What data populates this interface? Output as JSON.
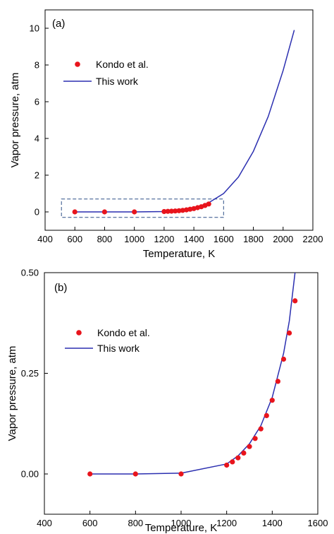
{
  "chart_data": [
    {
      "type": "scatter",
      "panel_label": "(a)",
      "xlabel": "Temperature, K",
      "ylabel": "Vapor pressure, atm",
      "xlim": [
        400,
        2200
      ],
      "ylim": [
        -1,
        11
      ],
      "x_ticks": [
        400,
        600,
        800,
        1000,
        1200,
        1400,
        1600,
        1800,
        2000,
        2200
      ],
      "y_ticks": [
        0,
        2,
        4,
        6,
        8,
        10
      ],
      "legend_position": "upper-left",
      "series": [
        {
          "name": "Kondo et al.",
          "kind": "scatter",
          "color": "#e8141c",
          "x": [
            600,
            800,
            1000,
            1200,
            1225,
            1250,
            1275,
            1300,
            1325,
            1350,
            1375,
            1400,
            1425,
            1450,
            1475,
            1500
          ],
          "y": [
            0,
            0,
            0,
            0.02,
            0.03,
            0.04,
            0.05,
            0.065,
            0.085,
            0.11,
            0.145,
            0.18,
            0.23,
            0.28,
            0.35,
            0.43
          ]
        },
        {
          "name": "This work",
          "kind": "line",
          "color": "#2b2fb0",
          "x": [
            600,
            800,
            1000,
            1200,
            1300,
            1400,
            1500,
            1600,
            1700,
            1800,
            1900,
            2000,
            2075
          ],
          "y": [
            0,
            0,
            0,
            0.02,
            0.07,
            0.2,
            0.5,
            1.0,
            1.9,
            3.3,
            5.2,
            7.7,
            9.9
          ]
        }
      ],
      "annotations": [
        {
          "type": "dashed-box",
          "color": "#2d4f87",
          "x_range": [
            510,
            1600
          ],
          "y_range": [
            -0.3,
            0.7
          ]
        }
      ]
    },
    {
      "type": "scatter",
      "panel_label": "(b)",
      "xlabel": "Temperature, K",
      "ylabel": "Vapor pressure, atm",
      "xlim": [
        400,
        1600
      ],
      "ylim": [
        -0.1,
        0.5
      ],
      "x_ticks": [
        400,
        600,
        800,
        1000,
        1200,
        1400,
        1600
      ],
      "y_ticks": [
        0,
        0.25,
        0.5
      ],
      "y_tick_labels": [
        "0.00",
        "0.25",
        "0.50"
      ],
      "legend_position": "upper-left",
      "series": [
        {
          "name": "Kondo et al.",
          "kind": "scatter",
          "color": "#e8141c",
          "x": [
            600,
            800,
            1000,
            1200,
            1225,
            1250,
            1275,
            1300,
            1325,
            1350,
            1375,
            1400,
            1425,
            1450,
            1475,
            1500
          ],
          "y": [
            0,
            0,
            0,
            0.022,
            0.03,
            0.04,
            0.052,
            0.068,
            0.088,
            0.112,
            0.145,
            0.183,
            0.23,
            0.285,
            0.35,
            0.43
          ]
        },
        {
          "name": "This work",
          "kind": "line",
          "color": "#2b2fb0",
          "x": [
            600,
            800,
            1000,
            1200,
            1250,
            1300,
            1350,
            1400,
            1450,
            1475,
            1500
          ],
          "y": [
            0,
            0,
            0.002,
            0.025,
            0.045,
            0.075,
            0.12,
            0.19,
            0.3,
            0.38,
            0.5
          ]
        }
      ]
    }
  ]
}
